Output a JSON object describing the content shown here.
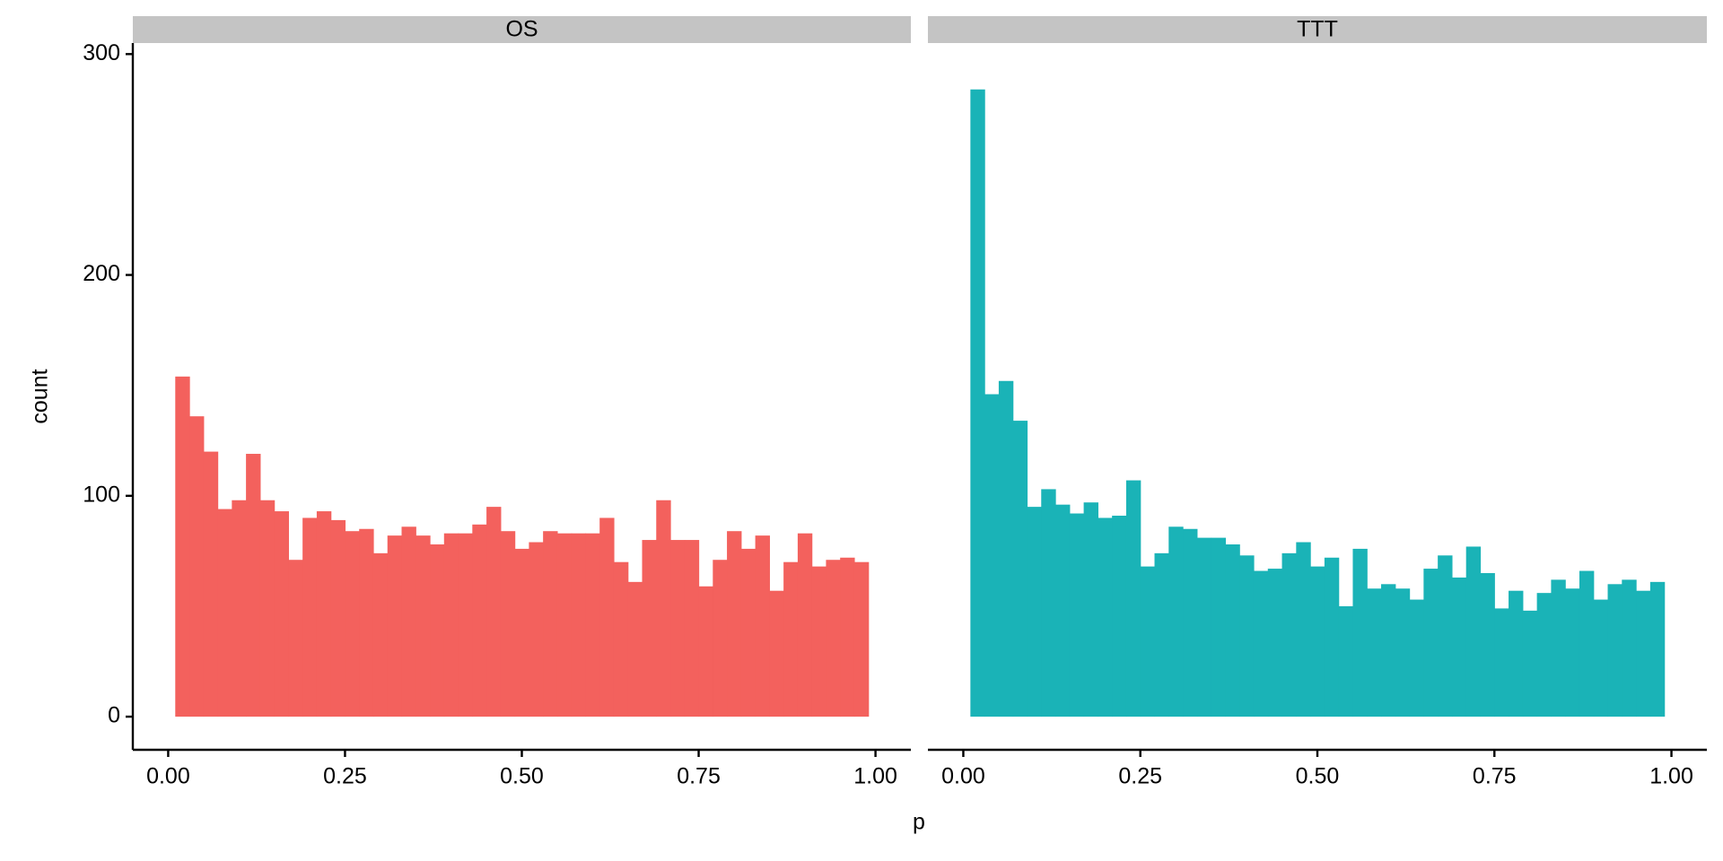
{
  "axis_labels": {
    "x": "p",
    "y": "count"
  },
  "chart_data": [
    {
      "type": "histogram",
      "facet": "OS",
      "color": "#f3615d",
      "bins": [
        0.01,
        0.03,
        0.05,
        0.07,
        0.09,
        0.11,
        0.13,
        0.15,
        0.17,
        0.19,
        0.21,
        0.23,
        0.25,
        0.27,
        0.29,
        0.31,
        0.33,
        0.35,
        0.37,
        0.39,
        0.41,
        0.43,
        0.45,
        0.47,
        0.49,
        0.51,
        0.53,
        0.55,
        0.57,
        0.59,
        0.61,
        0.63,
        0.65,
        0.67,
        0.69,
        0.71,
        0.73,
        0.75,
        0.77,
        0.79,
        0.81,
        0.83,
        0.85,
        0.87,
        0.89,
        0.91,
        0.93,
        0.95,
        0.97,
        0.99
      ],
      "values": [
        154,
        136,
        120,
        94,
        98,
        119,
        98,
        93,
        71,
        90,
        93,
        89,
        84,
        85,
        74,
        82,
        86,
        82,
        78,
        83,
        83,
        87,
        95,
        84,
        76,
        79,
        84,
        83,
        83,
        83,
        90,
        70,
        61,
        80,
        98,
        80,
        80,
        59,
        71,
        84,
        76,
        82,
        57,
        70,
        83,
        68,
        71,
        72,
        70
      ],
      "xlim": [
        -0.05,
        1.05
      ],
      "xticks": [
        {
          "value": 0,
          "label": "0.00"
        },
        {
          "value": 0.25,
          "label": "0.25"
        },
        {
          "value": 0.5,
          "label": "0.50"
        },
        {
          "value": 0.75,
          "label": "0.75"
        },
        {
          "value": 1,
          "label": "1.00"
        }
      ],
      "ylim": [
        -15,
        305
      ],
      "yticks": [
        0,
        100,
        200,
        300
      ]
    },
    {
      "type": "histogram",
      "facet": "TTT",
      "color": "#1ab3b7",
      "bins": [
        0.01,
        0.03,
        0.05,
        0.07,
        0.09,
        0.11,
        0.13,
        0.15,
        0.17,
        0.19,
        0.21,
        0.23,
        0.25,
        0.27,
        0.29,
        0.31,
        0.33,
        0.35,
        0.37,
        0.39,
        0.41,
        0.43,
        0.45,
        0.47,
        0.49,
        0.51,
        0.53,
        0.55,
        0.57,
        0.59,
        0.61,
        0.63,
        0.65,
        0.67,
        0.69,
        0.71,
        0.73,
        0.75,
        0.77,
        0.79,
        0.81,
        0.83,
        0.85,
        0.87,
        0.89,
        0.91,
        0.93,
        0.95,
        0.97,
        0.99
      ],
      "values": [
        284,
        146,
        152,
        134,
        95,
        103,
        96,
        92,
        97,
        90,
        91,
        107,
        68,
        74,
        86,
        85,
        81,
        81,
        78,
        73,
        66,
        67,
        74,
        79,
        68,
        72,
        50,
        76,
        58,
        60,
        58,
        53,
        67,
        73,
        63,
        77,
        65,
        49,
        57,
        48,
        56,
        62,
        58,
        66,
        53,
        60,
        62,
        57,
        61
      ],
      "xlim": [
        -0.05,
        1.05
      ],
      "xticks": [
        {
          "value": 0,
          "label": "0.00"
        },
        {
          "value": 0.25,
          "label": "0.25"
        },
        {
          "value": 0.5,
          "label": "0.50"
        },
        {
          "value": 0.75,
          "label": "0.75"
        },
        {
          "value": 1,
          "label": "1.00"
        }
      ],
      "ylim": [
        -15,
        305
      ]
    }
  ]
}
